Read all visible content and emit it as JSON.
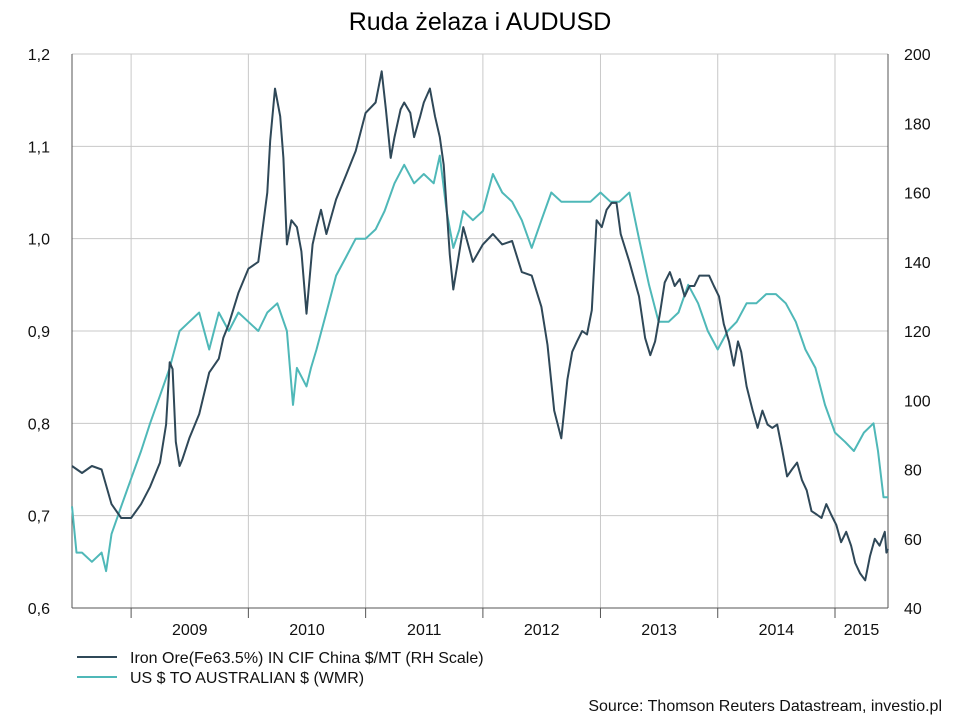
{
  "chart_data": {
    "type": "line",
    "title": "Ruda żelaza i AUDUSD",
    "x_tick_labels": [
      "2009",
      "2010",
      "2011",
      "2012",
      "2013",
      "2014",
      "2015"
    ],
    "x_range": [
      "2008-07-01",
      "2015-06-15"
    ],
    "y_left": {
      "ticks": [
        "0,6",
        "0,7",
        "0,8",
        "0,9",
        "1,0",
        "1,1",
        "1,2"
      ],
      "range": [
        0.6,
        1.2
      ]
    },
    "y_right": {
      "ticks": [
        "40",
        "60",
        "80",
        "100",
        "120",
        "140",
        "160",
        "180",
        "200"
      ],
      "range": [
        40,
        200
      ]
    },
    "grid": true,
    "legend_position": "bottom-left",
    "series": [
      {
        "name": "Iron Ore(Fe63.5%) IN CIF China $/MT (RH Scale)",
        "axis": "right",
        "color": "#2f4858",
        "points": [
          [
            "2008-07-01",
            81
          ],
          [
            "2008-08-01",
            79
          ],
          [
            "2008-09-01",
            81
          ],
          [
            "2008-10-01",
            80
          ],
          [
            "2008-11-01",
            70
          ],
          [
            "2008-12-01",
            66
          ],
          [
            "2009-01-01",
            66
          ],
          [
            "2009-02-01",
            70
          ],
          [
            "2009-03-01",
            75
          ],
          [
            "2009-04-01",
            82
          ],
          [
            "2009-04-20",
            93
          ],
          [
            "2009-05-01",
            111
          ],
          [
            "2009-05-10",
            109
          ],
          [
            "2009-05-20",
            88
          ],
          [
            "2009-06-01",
            81
          ],
          [
            "2009-06-10",
            83
          ],
          [
            "2009-07-01",
            89
          ],
          [
            "2009-08-01",
            96
          ],
          [
            "2009-09-01",
            108
          ],
          [
            "2009-10-01",
            112
          ],
          [
            "2009-10-15",
            118
          ],
          [
            "2009-11-01",
            122
          ],
          [
            "2009-12-01",
            131
          ],
          [
            "2010-01-01",
            138
          ],
          [
            "2010-02-01",
            140
          ],
          [
            "2010-03-01",
            160
          ],
          [
            "2010-03-10",
            175
          ],
          [
            "2010-03-25",
            190
          ],
          [
            "2010-04-10",
            182
          ],
          [
            "2010-04-20",
            170
          ],
          [
            "2010-05-01",
            145
          ],
          [
            "2010-05-15",
            152
          ],
          [
            "2010-06-01",
            150
          ],
          [
            "2010-06-15",
            143
          ],
          [
            "2010-07-01",
            125
          ],
          [
            "2010-07-20",
            145
          ],
          [
            "2010-08-01",
            150
          ],
          [
            "2010-08-15",
            155
          ],
          [
            "2010-09-01",
            148
          ],
          [
            "2010-10-01",
            158
          ],
          [
            "2010-11-01",
            165
          ],
          [
            "2010-12-01",
            172
          ],
          [
            "2011-01-01",
            183
          ],
          [
            "2011-02-01",
            186
          ],
          [
            "2011-02-20",
            195
          ],
          [
            "2011-03-05",
            184
          ],
          [
            "2011-03-20",
            170
          ],
          [
            "2011-04-01",
            176
          ],
          [
            "2011-04-20",
            184
          ],
          [
            "2011-05-01",
            186
          ],
          [
            "2011-05-20",
            183
          ],
          [
            "2011-06-01",
            176
          ],
          [
            "2011-06-20",
            182
          ],
          [
            "2011-07-01",
            186
          ],
          [
            "2011-07-20",
            190
          ],
          [
            "2011-08-05",
            182
          ],
          [
            "2011-08-20",
            176
          ],
          [
            "2011-09-01",
            168
          ],
          [
            "2011-09-20",
            142
          ],
          [
            "2011-10-01",
            132
          ],
          [
            "2011-10-15",
            140
          ],
          [
            "2011-11-01",
            150
          ],
          [
            "2011-12-01",
            140
          ],
          [
            "2012-01-01",
            145
          ],
          [
            "2012-02-01",
            148
          ],
          [
            "2012-03-01",
            145
          ],
          [
            "2012-04-01",
            146
          ],
          [
            "2012-05-01",
            137
          ],
          [
            "2012-06-01",
            136
          ],
          [
            "2012-07-01",
            127
          ],
          [
            "2012-07-20",
            116
          ],
          [
            "2012-08-10",
            97
          ],
          [
            "2012-09-01",
            89
          ],
          [
            "2012-09-20",
            106
          ],
          [
            "2012-10-05",
            114
          ],
          [
            "2012-10-20",
            117
          ],
          [
            "2012-11-05",
            120
          ],
          [
            "2012-11-20",
            119
          ],
          [
            "2012-12-05",
            126
          ],
          [
            "2012-12-20",
            152
          ],
          [
            "2013-01-05",
            150
          ],
          [
            "2013-01-20",
            155
          ],
          [
            "2013-02-05",
            157
          ],
          [
            "2013-02-20",
            157
          ],
          [
            "2013-03-05",
            148
          ],
          [
            "2013-04-01",
            140
          ],
          [
            "2013-05-01",
            130
          ],
          [
            "2013-05-20",
            118
          ],
          [
            "2013-06-05",
            113
          ],
          [
            "2013-06-20",
            117
          ],
          [
            "2013-07-05",
            125
          ],
          [
            "2013-07-20",
            134
          ],
          [
            "2013-08-05",
            137
          ],
          [
            "2013-08-20",
            133
          ],
          [
            "2013-09-05",
            135
          ],
          [
            "2013-09-20",
            130
          ],
          [
            "2013-10-05",
            133
          ],
          [
            "2013-10-20",
            133
          ],
          [
            "2013-11-05",
            136
          ],
          [
            "2013-11-20",
            136
          ],
          [
            "2013-12-05",
            136
          ],
          [
            "2013-12-20",
            133
          ],
          [
            "2014-01-05",
            130
          ],
          [
            "2014-01-20",
            122
          ],
          [
            "2014-02-05",
            117
          ],
          [
            "2014-02-20",
            110
          ],
          [
            "2014-03-05",
            117
          ],
          [
            "2014-03-15",
            114
          ],
          [
            "2014-04-01",
            104
          ],
          [
            "2014-04-20",
            97
          ],
          [
            "2014-05-05",
            92
          ],
          [
            "2014-05-20",
            97
          ],
          [
            "2014-06-05",
            93
          ],
          [
            "2014-06-20",
            92
          ],
          [
            "2014-07-05",
            93
          ],
          [
            "2014-07-20",
            86
          ],
          [
            "2014-08-05",
            78
          ],
          [
            "2014-08-20",
            80
          ],
          [
            "2014-09-05",
            82
          ],
          [
            "2014-09-20",
            77
          ],
          [
            "2014-10-05",
            74
          ],
          [
            "2014-10-20",
            68
          ],
          [
            "2014-11-05",
            67
          ],
          [
            "2014-11-20",
            66
          ],
          [
            "2014-12-05",
            70
          ],
          [
            "2014-12-20",
            67
          ],
          [
            "2015-01-05",
            64
          ],
          [
            "2015-01-20",
            59
          ],
          [
            "2015-02-05",
            62
          ],
          [
            "2015-02-20",
            58
          ],
          [
            "2015-03-05",
            53
          ],
          [
            "2015-03-20",
            50
          ],
          [
            "2015-04-05",
            48
          ],
          [
            "2015-04-20",
            55
          ],
          [
            "2015-05-05",
            60
          ],
          [
            "2015-05-20",
            58
          ],
          [
            "2015-06-05",
            62
          ],
          [
            "2015-06-10",
            56
          ],
          [
            "2015-06-15",
            57
          ]
        ]
      },
      {
        "name": "US $ TO AUSTRALIAN $ (WMR)",
        "axis": "left",
        "color": "#4fb8b8",
        "points": [
          [
            "2008-07-01",
            0.71
          ],
          [
            "2008-07-15",
            0.66
          ],
          [
            "2008-08-01",
            0.66
          ],
          [
            "2008-09-01",
            0.65
          ],
          [
            "2008-10-01",
            0.66
          ],
          [
            "2008-10-15",
            0.64
          ],
          [
            "2008-11-01",
            0.68
          ],
          [
            "2008-12-01",
            0.71
          ],
          [
            "2009-01-01",
            0.74
          ],
          [
            "2009-02-01",
            0.77
          ],
          [
            "2009-03-01",
            0.8
          ],
          [
            "2009-04-01",
            0.83
          ],
          [
            "2009-05-01",
            0.86
          ],
          [
            "2009-06-01",
            0.9
          ],
          [
            "2009-07-01",
            0.91
          ],
          [
            "2009-08-01",
            0.92
          ],
          [
            "2009-09-01",
            0.88
          ],
          [
            "2009-10-01",
            0.92
          ],
          [
            "2009-11-01",
            0.9
          ],
          [
            "2009-12-01",
            0.92
          ],
          [
            "2010-01-01",
            0.91
          ],
          [
            "2010-02-01",
            0.9
          ],
          [
            "2010-03-01",
            0.92
          ],
          [
            "2010-04-01",
            0.93
          ],
          [
            "2010-05-01",
            0.9
          ],
          [
            "2010-05-20",
            0.82
          ],
          [
            "2010-06-01",
            0.86
          ],
          [
            "2010-07-01",
            0.84
          ],
          [
            "2010-07-15",
            0.86
          ],
          [
            "2010-08-01",
            0.88
          ],
          [
            "2010-09-01",
            0.92
          ],
          [
            "2010-10-01",
            0.96
          ],
          [
            "2010-11-01",
            0.98
          ],
          [
            "2010-12-01",
            1.0
          ],
          [
            "2011-01-01",
            1.0
          ],
          [
            "2011-02-01",
            1.01
          ],
          [
            "2011-03-01",
            1.03
          ],
          [
            "2011-04-01",
            1.06
          ],
          [
            "2011-05-01",
            1.08
          ],
          [
            "2011-06-01",
            1.06
          ],
          [
            "2011-07-01",
            1.07
          ],
          [
            "2011-08-01",
            1.06
          ],
          [
            "2011-08-20",
            1.09
          ],
          [
            "2011-09-10",
            1.03
          ],
          [
            "2011-10-01",
            0.99
          ],
          [
            "2011-10-20",
            1.01
          ],
          [
            "2011-11-01",
            1.03
          ],
          [
            "2011-12-01",
            1.02
          ],
          [
            "2012-01-01",
            1.03
          ],
          [
            "2012-02-01",
            1.07
          ],
          [
            "2012-03-01",
            1.05
          ],
          [
            "2012-04-01",
            1.04
          ],
          [
            "2012-05-01",
            1.02
          ],
          [
            "2012-06-01",
            0.99
          ],
          [
            "2012-07-01",
            1.02
          ],
          [
            "2012-08-01",
            1.05
          ],
          [
            "2012-09-01",
            1.04
          ],
          [
            "2012-10-01",
            1.04
          ],
          [
            "2012-11-01",
            1.04
          ],
          [
            "2012-12-01",
            1.04
          ],
          [
            "2013-01-01",
            1.05
          ],
          [
            "2013-02-01",
            1.04
          ],
          [
            "2013-03-01",
            1.04
          ],
          [
            "2013-04-01",
            1.05
          ],
          [
            "2013-05-01",
            1.0
          ],
          [
            "2013-06-01",
            0.95
          ],
          [
            "2013-07-01",
            0.91
          ],
          [
            "2013-08-01",
            0.91
          ],
          [
            "2013-09-01",
            0.92
          ],
          [
            "2013-10-01",
            0.95
          ],
          [
            "2013-11-01",
            0.93
          ],
          [
            "2013-12-01",
            0.9
          ],
          [
            "2014-01-01",
            0.88
          ],
          [
            "2014-02-01",
            0.9
          ],
          [
            "2014-03-01",
            0.91
          ],
          [
            "2014-04-01",
            0.93
          ],
          [
            "2014-05-01",
            0.93
          ],
          [
            "2014-06-01",
            0.94
          ],
          [
            "2014-07-01",
            0.94
          ],
          [
            "2014-08-01",
            0.93
          ],
          [
            "2014-09-01",
            0.91
          ],
          [
            "2014-10-01",
            0.88
          ],
          [
            "2014-11-01",
            0.86
          ],
          [
            "2014-12-01",
            0.82
          ],
          [
            "2015-01-01",
            0.79
          ],
          [
            "2015-02-01",
            0.78
          ],
          [
            "2015-03-01",
            0.77
          ],
          [
            "2015-04-01",
            0.79
          ],
          [
            "2015-05-01",
            0.8
          ],
          [
            "2015-05-15",
            0.77
          ],
          [
            "2015-06-01",
            0.72
          ],
          [
            "2015-06-15",
            0.72
          ]
        ]
      }
    ]
  },
  "source": "Source: Thomson Reuters Datastream, investio.pl"
}
